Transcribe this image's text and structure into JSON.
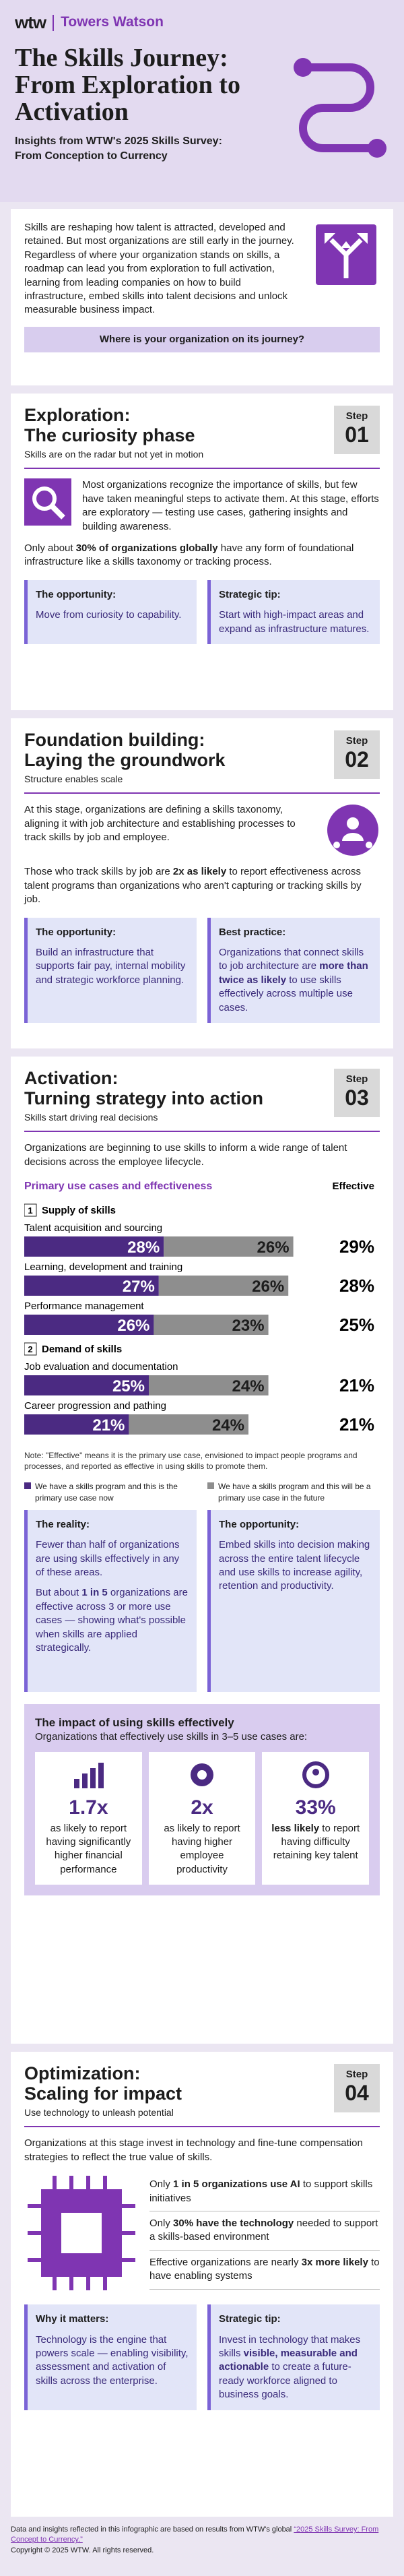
{
  "header": {
    "logo": "wtw",
    "brand": "Towers Watson",
    "title": "The Skills Journey: From Exploration to Activation",
    "subtitle": "Insights from WTW's 2025 Skills Survey: From Conception to Currency"
  },
  "intro": {
    "text": "Skills are reshaping how talent is attracted, developed and retained. But most organizations are still early in the journey. Regardless of where your organization stands on skills, a roadmap can lead you from exploration to full activation, learning from leading companies on how to build infrastructure, embed skills into talent decisions and unlock measurable business impact.",
    "cta": "Where is your organization on its journey?"
  },
  "steps": [
    {
      "heading": "Exploration:",
      "subheading": "The curiosity phase",
      "tagline": "Skills are on the radar but not yet in motion",
      "badge": {
        "label": "Step",
        "number": "01"
      },
      "lead": "Most organizations recognize the importance of skills, but few have taken meaningful steps to activate them. At this stage, efforts are exploratory — testing use cases, gathering insights and building awareness.",
      "detail": [
        "Only about ",
        "30% of organizations globally",
        " have any form of foundational infrastructure like a skills taxonomy or tracking process."
      ],
      "boxes": [
        {
          "title": "The opportunity:",
          "text": "Move from curiosity to capability."
        },
        {
          "title": "Strategic tip:",
          "text": "Start with high-impact areas and expand as infrastructure matures."
        }
      ]
    },
    {
      "heading": "Foundation building:",
      "subheading": "Laying the groundwork",
      "tagline": "Structure enables scale",
      "badge": {
        "label": "Step",
        "number": "02"
      },
      "lead": "At this stage, organizations are defining a skills taxonomy, aligning it with job architecture and establishing processes to track skills by job and employee.",
      "detail": [
        "Those who track skills by job are ",
        "2x as likely",
        " to report effectiveness across talent programs than organizations who aren't capturing or tracking skills by job."
      ],
      "boxes": [
        {
          "title": "The opportunity:",
          "text": "Build an infrastructure that supports fair pay, internal mobility and strategic workforce planning."
        },
        {
          "title": "Best practice:",
          "text": [
            "Organizations that connect skills to job architecture are ",
            "more than twice as likely",
            " to use skills effectively across multiple use cases."
          ]
        }
      ]
    },
    {
      "heading": "Activation:",
      "subheading": "Turning strategy into action",
      "tagline": "Skills start driving real decisions",
      "badge": {
        "label": "Step",
        "number": "03"
      },
      "lead": "Organizations are beginning to use skills to inform a wide range of talent decisions across the employee lifecycle.",
      "boxes": [
        {
          "title": "The reality:",
          "text": "Fewer than half of organizations are using skills effectively in any of these areas.",
          "detail": [
            "But about ",
            "1 in 5",
            " organizations are effective across 3 or more use cases — showing what's possible when skills are applied strategically."
          ]
        },
        {
          "title": "The opportunity:",
          "text": "Embed skills into decision making across the entire talent lifecycle and use skills to increase agility, retention and productivity."
        }
      ],
      "impact": {
        "title": "The impact of using skills effectively",
        "subtitle": "Organizations that effectively use skills in 3–5 use cases are:",
        "stats": [
          {
            "figure": "1.7x",
            "text": "as likely to report having significantly higher financial performance"
          },
          {
            "figure": "2x",
            "text": "as likely to report having higher employee productivity"
          },
          {
            "figure": "33%",
            "emphasis": "less likely",
            "text": "to report having difficulty retaining key talent"
          }
        ]
      }
    },
    {
      "heading": "Optimization:",
      "subheading": "Scaling for impact",
      "tagline": "Use technology to unleash potential",
      "badge": {
        "label": "Step",
        "number": "04"
      },
      "lead": "Organizations at this stage invest in technology and fine-tune compensation strategies to reflect the true value of skills.",
      "facts": [
        [
          "Only ",
          "1 in 5 organizations use AI",
          " to support skills initiatives"
        ],
        [
          "Only ",
          "30% have the technology",
          " needed to support a skills-based environment"
        ],
        [
          "Effective organizations are nearly ",
          "3x more likely",
          " to have enabling systems"
        ]
      ],
      "boxes": [
        {
          "title": "Why it matters:",
          "text": "Technology is the engine that powers scale — enabling visibility, assessment and activation of skills across the enterprise."
        },
        {
          "title": "Strategic tip:",
          "text": [
            "Invest in technology that makes skills ",
            "visible, measurable and actionable",
            " to create a future-ready workforce aligned to business goals."
          ]
        }
      ]
    }
  ],
  "chart_data": {
    "type": "bar",
    "stacked": true,
    "orientation": "horizontal",
    "title": "Primary use cases and effectiveness",
    "effective_header": "Effective",
    "series": [
      {
        "name": "We have a skills program and this is the primary use case now",
        "color": "#4b2a82"
      },
      {
        "name": "We have a skills program and this will be a primary use case in the future",
        "color": "#8e8e8e"
      }
    ],
    "groups": [
      {
        "number": "1",
        "title": "Supply of skills",
        "categories": [
          "Talent acquisition and sourcing",
          "Learning, development and training",
          "Performance management"
        ],
        "series": [
          {
            "values": [
              28,
              27,
              26
            ],
            "value_labels": [
              "28%",
              "27%",
              "26%"
            ]
          },
          {
            "values": [
              26,
              26,
              23
            ],
            "value_labels": [
              "26%",
              "26%",
              "23%"
            ]
          }
        ],
        "effective": [
          "29%",
          "28%",
          "25%"
        ]
      },
      {
        "number": "2",
        "title": "Demand of skills",
        "categories": [
          "Job evaluation and documentation",
          "Career progression and pathing"
        ],
        "series": [
          {
            "values": [
              25,
              21
            ],
            "value_labels": [
              "25%",
              "21%"
            ]
          },
          {
            "values": [
              24,
              24
            ],
            "value_labels": [
              "24%",
              "24%"
            ]
          }
        ],
        "effective": [
          "21%",
          "21%"
        ]
      }
    ],
    "note": "Note: \"Effective\" means it is the primary use case, envisioned to impact people programs and processes, and reported as effective in using skills to promote them."
  },
  "footer": {
    "text": "Data and insights reflected in this infographic are based on results from WTW's global ",
    "link": "“2025 Skills Survey: From Concept to Currency.”",
    "copyright": "Copyright © 2025 WTW. All rights reserved."
  }
}
